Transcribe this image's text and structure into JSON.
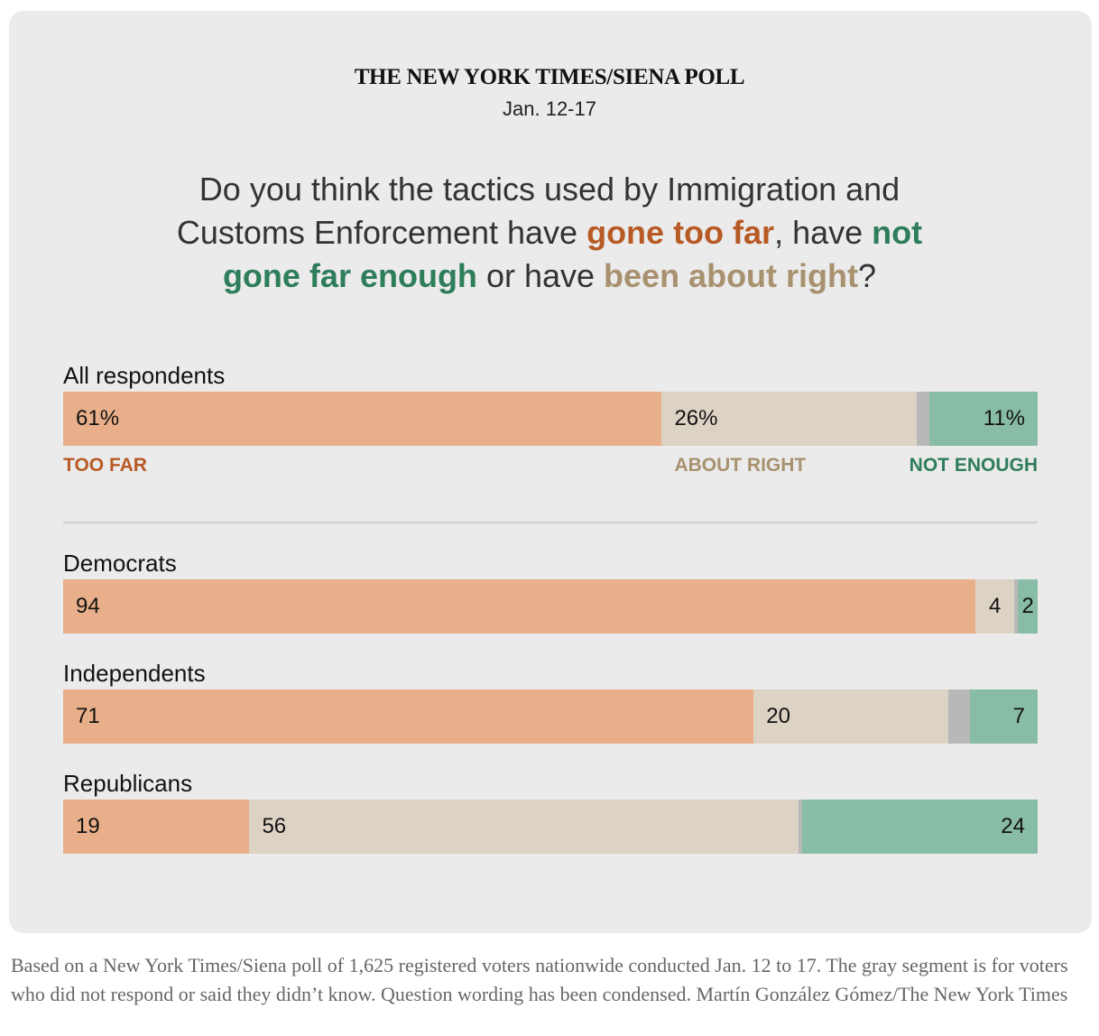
{
  "header": {
    "title": "THE NEW YORK TIMES/SIENA POLL",
    "date": "Jan. 12-17"
  },
  "question": {
    "part1": "Do you think the tactics used by Immigration and Customs Enforcement have ",
    "far": "gone too far",
    "part2": ", have ",
    "not_enough": "not gone far enough",
    "part3": " or have ",
    "right": "been about right",
    "part4": "?"
  },
  "colors": {
    "too_far": "#e9af8a",
    "about_right": "#ddd3c5",
    "no_answer": "#b8b8b8",
    "not_enough": "#88bca6",
    "too_far_text": "#b85a25",
    "about_right_text": "#a8916f",
    "not_enough_text": "#2e7d5b"
  },
  "chart_data": {
    "type": "bar",
    "stacked": true,
    "title": "THE NEW YORK TIMES/SIENA POLL",
    "series_names": [
      "Too far",
      "About right",
      "No answer / don't know",
      "Not enough"
    ],
    "legend": {
      "too_far": "TOO FAR",
      "about_right": "ABOUT RIGHT",
      "not_enough": "NOT ENOUGH"
    },
    "groups": [
      {
        "label": "All respondents",
        "too_far": 61,
        "about_right": 26,
        "no_answer": 1.3,
        "not_enough": 11,
        "labels": [
          "61%",
          "26%",
          "11%"
        ]
      },
      {
        "label": "Democrats",
        "too_far": 94,
        "about_right": 4,
        "no_answer": 0.4,
        "not_enough": 2,
        "labels": [
          "94",
          "4",
          "2"
        ]
      },
      {
        "label": "Independents",
        "too_far": 71,
        "about_right": 20,
        "no_answer": 2.2,
        "not_enough": 7,
        "labels": [
          "71",
          "20",
          "7"
        ]
      },
      {
        "label": "Republicans",
        "too_far": 19,
        "about_right": 56,
        "no_answer": 0.4,
        "not_enough": 24,
        "labels": [
          "19",
          "56",
          "24"
        ]
      }
    ]
  },
  "note": "Based on a New York Times/Siena poll of 1,625 registered voters nationwide conducted Jan. 12 to 17.  The gray segment is for voters who did not respond or said they didn’t know. Question wording has been condensed.  Martín González Gómez/The New York Times"
}
